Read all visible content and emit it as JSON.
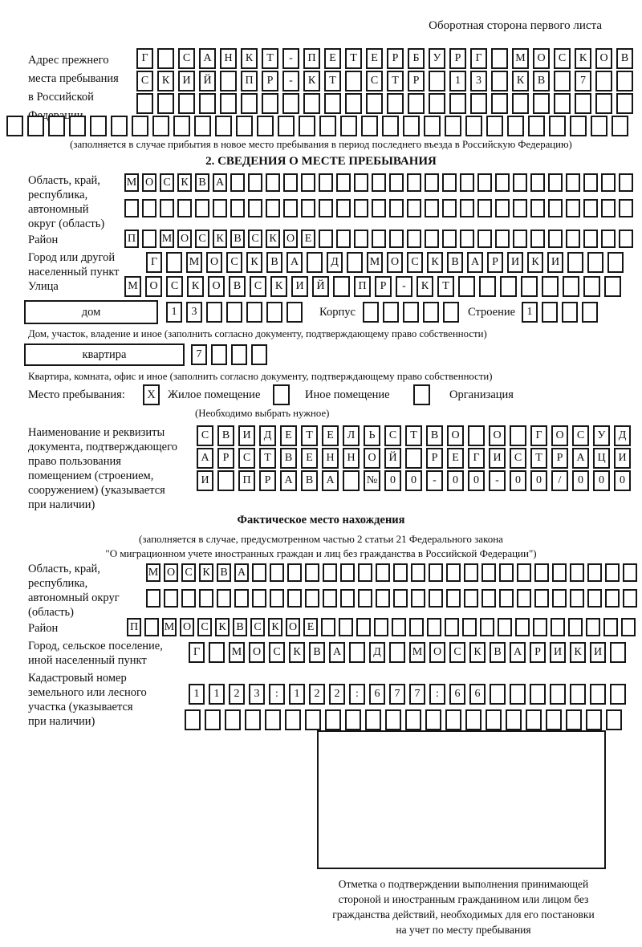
{
  "page_header": "Оборотная сторона первого листа",
  "prev_address": {
    "label": "Адрес прежнего\nместа пребывания\nв Российской\nФедерации",
    "row1": {
      "cells": "Г САНКТ-ПЕТЕРБУРГ МОСКОВ",
      "len": 24
    },
    "row2": {
      "cells": "СКИЙ ПР-КТ СТР 13 КВ 7",
      "len": 24
    },
    "row3": {
      "cells": "",
      "len": 24
    },
    "row4": {
      "cells": "",
      "len": 30
    },
    "note": "(заполняется в случае прибытия в новое место пребывания в период последнего въезда в Российскую Федерацию)"
  },
  "section2": {
    "title": "2. СВЕДЕНИЯ О МЕСТЕ ПРЕБЫВАНИЯ",
    "region": {
      "label": "Область, край,\nреспублика,\nавтономный\nокруг (область)",
      "row1": {
        "cells": "МОСКВА",
        "len": 29
      },
      "row2": {
        "cells": "",
        "len": 29
      }
    },
    "district": {
      "label": "Район",
      "row": {
        "cells": "П МОСКВСКОЕ",
        "len": 29
      }
    },
    "city": {
      "label": "Город или другой\nнаселенный пункт",
      "row": {
        "cells": "Г МОСКВА Д МОСКВАРИКИ",
        "len": 24
      }
    },
    "street": {
      "label": "Улица",
      "row": {
        "cells": "МОСКОВСКИЙ ПР-КТ",
        "len": 24
      }
    },
    "house": {
      "box_label": "дом",
      "row": {
        "cells": "13",
        "len": 7
      },
      "korpus_label": "Корпус",
      "korpus_row": {
        "cells": "",
        "len": 5
      },
      "stroenie_label": "Строение",
      "stroenie_row": {
        "cells": "1",
        "len": 4
      },
      "note": "Дом, участок, владение и иное (заполнить согласно документу, подтверждающему право собственности)"
    },
    "apartment": {
      "box_label": "квартира",
      "row": {
        "cells": "7",
        "len": 4
      },
      "note": "Квартира, комната, офис и иное (заполнить согласно документу, подтверждающему право собственности)"
    },
    "stay_type": {
      "label": "Место пребывания:",
      "mark": "X",
      "options": [
        "Жилое помещение",
        "Иное помещение",
        "Организация"
      ],
      "note": "(Необходимо выбрать нужное)"
    },
    "document": {
      "label": "Наименование и реквизиты\nдокумента, подтверждающего\nправо пользования\nпомещением (строением,\nсооружением) (указывается\nпри наличии)",
      "row1": {
        "cells": "СВИДЕТЕЛЬСТВО О ГОСУД",
        "len": 21
      },
      "row2": {
        "cells": "АРСТВЕННОЙ РЕГИСТРАЦИ",
        "len": 21
      },
      "row3": {
        "cells": "И ПРАВА №00-00-00/000",
        "len": 21
      }
    }
  },
  "actual_location": {
    "title": "Фактическое место нахождения",
    "note1": "(заполняется в случае, предусмотренном частью 2 статьи 21 Федерального закона",
    "note2": "\"О миграционном учете иностранных граждан и лиц без гражданства в Российской Федерации\")",
    "region": {
      "label": "Область, край,\nреспублика,\nавтономный округ\n(область)",
      "row1": {
        "cells": "МОСКВА",
        "len": 28
      },
      "row2": {
        "cells": "",
        "len": 28
      }
    },
    "district": {
      "label": "Район",
      "row": {
        "cells": "П МОСКВСКОЕ",
        "len": 29
      }
    },
    "city": {
      "label": "Город, сельское поселение,\nиной населенный пункт",
      "row": {
        "cells": "Г МОСКВА Д МОСКВАРИКИ",
        "len": 22
      }
    },
    "cadastral": {
      "label": "Кадастровый номер\nземельного или лесного\nучастка (указывается\nпри наличии)",
      "row1": {
        "cells": "1123:122:677:66",
        "len": 22
      },
      "row2": {
        "cells": "",
        "len": 22
      }
    },
    "stamp_note": "Отметка о подтверждении выполнения принимающей\nстороной и иностранным гражданином или лицом без\nгражданства действий, необходимых для его постановки\nна учет по месту пребывания"
  }
}
